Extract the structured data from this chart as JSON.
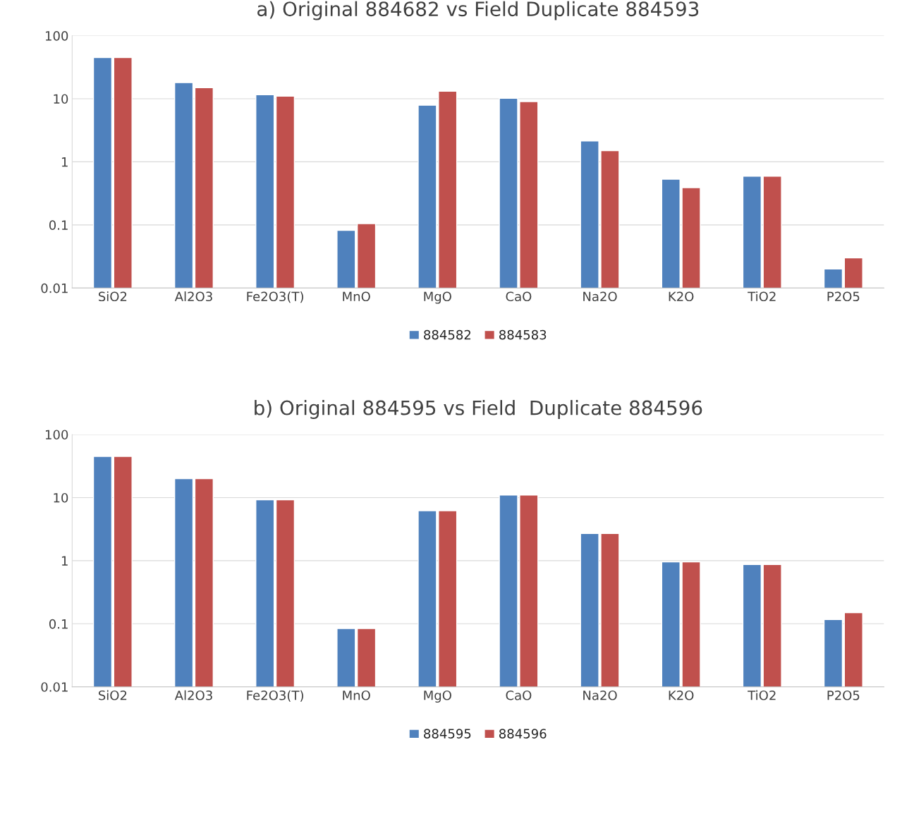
{
  "chart_data": [
    {
      "type": "bar",
      "title": "a) Original 884682 vs Field Duplicate 884593",
      "categories": [
        "SiO2",
        "Al2O3",
        "Fe2O3(T)",
        "MnO",
        "MgO",
        "CaO",
        "Na2O",
        "K2O",
        "TiO2",
        "P2O5"
      ],
      "series": [
        {
          "name": "884582",
          "color": "#4f81bd",
          "values": [
            45,
            18,
            11.6,
            0.082,
            7.9,
            10.2,
            2.15,
            0.53,
            0.59,
            0.02
          ]
        },
        {
          "name": "884583",
          "color": "#c0504d",
          "values": [
            45,
            15,
            11,
            0.105,
            13.2,
            9,
            1.5,
            0.39,
            0.59,
            0.03
          ]
        }
      ],
      "log": "y",
      "ylim": [
        0.01,
        100
      ],
      "yticks": [
        0.01,
        0.1,
        1,
        10,
        100
      ],
      "grid": "y",
      "legend": "bottom"
    },
    {
      "type": "bar",
      "title": "b) Original 884595 vs Field  Duplicate 884596",
      "categories": [
        "SiO2",
        "Al2O3",
        "Fe2O3(T)",
        "MnO",
        "MgO",
        "CaO",
        "Na2O",
        "K2O",
        "TiO2",
        "P2O5"
      ],
      "series": [
        {
          "name": "884595",
          "color": "#4f81bd",
          "values": [
            45,
            20,
            9.2,
            0.084,
            6.2,
            11,
            2.7,
            0.96,
            0.87,
            0.117
          ]
        },
        {
          "name": "884596",
          "color": "#c0504d",
          "values": [
            45,
            20,
            9.2,
            0.084,
            6.2,
            11,
            2.7,
            0.96,
            0.87,
            0.15
          ]
        }
      ],
      "log": "y",
      "ylim": [
        0.01,
        100
      ],
      "yticks": [
        0.01,
        0.1,
        1,
        10,
        100
      ],
      "grid": "y",
      "legend": "bottom"
    }
  ]
}
